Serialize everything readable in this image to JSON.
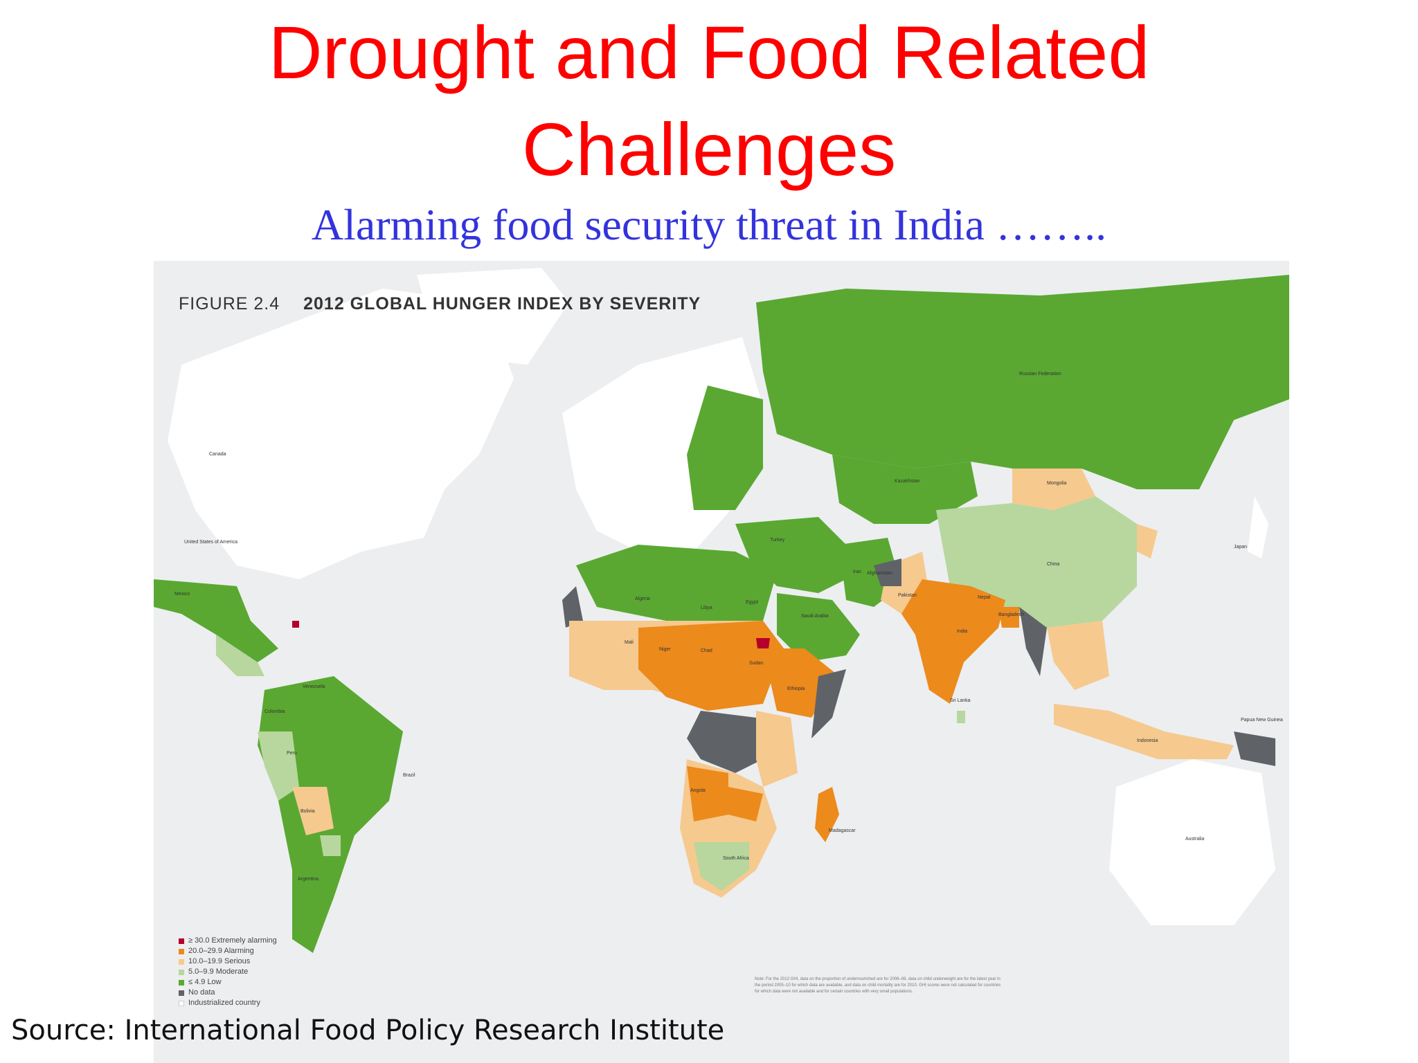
{
  "slide": {
    "title_line1": "Drought and Food Related",
    "title_line2": "Challenges",
    "subtitle": "Alarming food security threat in India ……..",
    "source": "Source: International Food Policy Research Institute"
  },
  "map": {
    "figure_number": "FIGURE 2.4",
    "figure_title": "2012 GLOBAL HUNGER INDEX BY SEVERITY",
    "legend": [
      {
        "label": "≥ 30.0 Extremely alarming",
        "color": "#b5002a"
      },
      {
        "label": "20.0–29.9 Alarming",
        "color": "#ec8a1c"
      },
      {
        "label": "10.0–19.9 Serious",
        "color": "#f6c98f"
      },
      {
        "label": "5.0–9.9 Moderate",
        "color": "#b7d79e"
      },
      {
        "label": "≤ 4.9 Low",
        "color": "#5aa832"
      },
      {
        "label": "No data",
        "color": "#5f6367"
      },
      {
        "label": "Industrialized country",
        "color": "#ffffff"
      }
    ],
    "note": "Note: For the 2012 GHI, data on the proportion of undernourished are for 2006–08, data on child underweight are for the latest year in the period 2005–10 for which data are available, and data on child mortality are for 2010. GHI scores were not calculated for countries for which data were not available and for certain countries with very small populations.",
    "country_labels": {
      "russia": "Russian Federation",
      "kazakhstan": "Kazakhstan",
      "mongolia": "Mongolia",
      "china": "China",
      "india": "India",
      "pakistan": "Pakistan",
      "nepal": "Nepal",
      "bangladesh": "Bangladesh",
      "sri_lanka": "Sri Lanka",
      "brazil": "Brazil",
      "peru": "Peru",
      "bolivia": "Bolivia",
      "argentina": "Argentina",
      "mexico": "Mexico",
      "canada": "Canada",
      "usa": "United States of America",
      "australia": "Australia",
      "indonesia": "Indonesia",
      "madagascar": "Madagascar",
      "south_africa": "South Africa",
      "angola": "Angola",
      "sudan": "Sudan",
      "chad": "Chad",
      "niger": "Niger",
      "mali": "Mali",
      "algeria": "Algeria",
      "libya": "Libya",
      "egypt": "Egypt",
      "ethiopia": "Ethiopia",
      "saudi_arabia": "Saudi Arabia",
      "iran": "Iran",
      "turkey": "Turkey",
      "afghanistan": "Afghanistan",
      "papua_new_guinea": "Papua New Guinea",
      "japan": "Japan",
      "venezuela": "Venezuela",
      "colombia": "Colombia"
    }
  }
}
